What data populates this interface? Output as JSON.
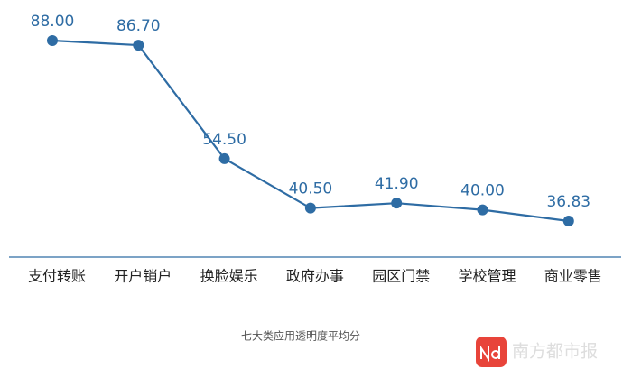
{
  "chart_data": {
    "type": "line",
    "title": "七大类应用透明度平均分",
    "categories": [
      "支付转账",
      "开户销户",
      "换脸娱乐",
      "政府办事",
      "园区门禁",
      "学校管理",
      "商业零售"
    ],
    "values": [
      88,
      86.7,
      54.5,
      40.5,
      41.9,
      40,
      36.83
    ],
    "value_labels": [
      "88.00",
      "86.70",
      "54.50",
      "40.50",
      "41.90",
      "40.00",
      "36.83"
    ],
    "color": "#2e6ca4",
    "source": "南方都市报"
  }
}
